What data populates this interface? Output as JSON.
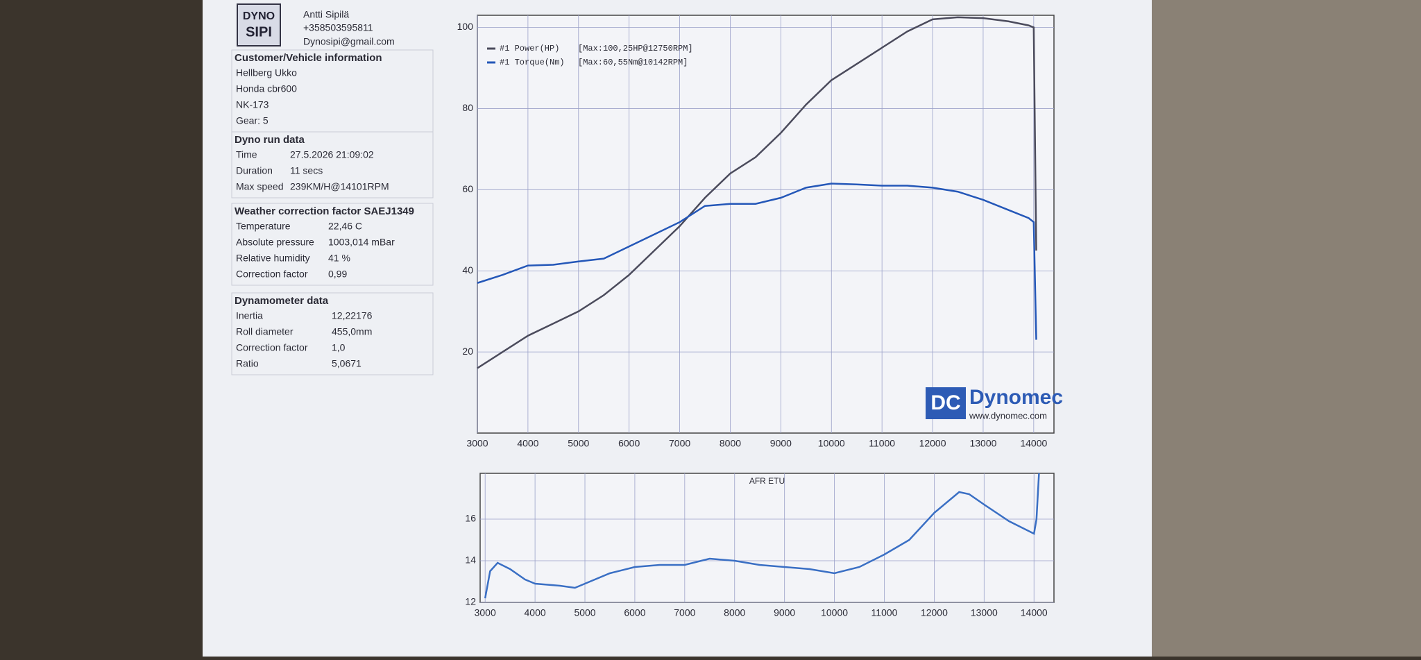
{
  "header": {
    "logo": [
      "DYNO",
      "SIPI"
    ],
    "name": "Antti Sipilä",
    "phone": "+358503595811",
    "email": "Dynosipi@gmail.com"
  },
  "sections": [
    {
      "title": "Customer/Vehicle information",
      "rows": [
        [
          "Hellberg Ukko"
        ],
        [
          "Honda cbr600"
        ],
        [
          "NK-173"
        ],
        [
          "Gear: 5"
        ]
      ]
    },
    {
      "title": "Dyno run data",
      "rows": [
        [
          "Time",
          "27.5.2026 21:09:02"
        ],
        [
          "Duration",
          "11 secs"
        ],
        [
          "Max speed",
          "239KM/H@14101RPM"
        ]
      ]
    },
    {
      "title": "Weather correction factor SAEJ1349",
      "rows": [
        [
          "Temperature",
          "22,46 C"
        ],
        [
          "Absolute pressure",
          "1003,014 mBar"
        ],
        [
          "Relative humidity",
          "41 %"
        ],
        [
          "Correction factor",
          "0,99"
        ]
      ]
    },
    {
      "title": "Dynamometer data",
      "rows": [
        [
          "Inertia",
          "12,22176"
        ],
        [
          "Roll diameter",
          "455,0mm"
        ],
        [
          "Correction factor",
          "1,0"
        ],
        [
          "Ratio",
          "5,0671"
        ]
      ]
    }
  ],
  "chart_data": [
    {
      "type": "line",
      "logo_mark": "DC",
      "logo_text": "Dynomec",
      "logo_url": "www.dynomec.com",
      "x": [
        3000,
        3500,
        4000,
        4500,
        5000,
        5500,
        6000,
        6500,
        7000,
        7500,
        8000,
        8500,
        9000,
        9500,
        10000,
        10500,
        11000,
        11500,
        12000,
        12500,
        13000,
        13500,
        13900,
        14000,
        14050
      ],
      "series": [
        {
          "name": "#1 Power(HP)",
          "note": "[Max:100,25HP@12750RPM]",
          "color": "#4b4b5c",
          "values": [
            16,
            20,
            24,
            27,
            30,
            34,
            39,
            45,
            51,
            58,
            64,
            68,
            74,
            81,
            87,
            91,
            95,
            99,
            102,
            102.5,
            102.3,
            101.5,
            100.5,
            100,
            45
          ]
        },
        {
          "name": "#1 Torque(Nm)",
          "note": "[Max:60,55Nm@10142RPM]",
          "color": "#2457b8",
          "values": [
            37,
            39,
            41.3,
            41.5,
            42.3,
            43,
            46,
            49,
            52,
            56,
            56.5,
            56.5,
            58,
            60.5,
            61.5,
            61.3,
            61,
            61,
            60.5,
            59.5,
            57.5,
            55,
            53,
            52,
            23
          ]
        }
      ],
      "xlim": [
        3000,
        14400
      ],
      "xticks": [
        3000,
        4000,
        5000,
        6000,
        7000,
        8000,
        9000,
        10000,
        11000,
        12000,
        13000,
        14000
      ],
      "ylim": [
        0,
        103
      ],
      "yticks": [
        20,
        40,
        60,
        80,
        100
      ],
      "grid": true
    },
    {
      "type": "line",
      "title": "AFR ETU",
      "x": [
        3000,
        3100,
        3250,
        3500,
        3800,
        4000,
        4500,
        4800,
        5000,
        5500,
        6000,
        6500,
        7000,
        7500,
        8000,
        8500,
        9000,
        9500,
        10000,
        10500,
        11000,
        11500,
        12000,
        12500,
        12700,
        13000,
        13500,
        14000,
        14050,
        14100
      ],
      "series": [
        {
          "name": "AFR",
          "color": "#3a6fc4",
          "values": [
            12.2,
            13.5,
            13.9,
            13.6,
            13.1,
            12.9,
            12.8,
            12.7,
            12.9,
            13.4,
            13.7,
            13.8,
            13.8,
            14.1,
            14.0,
            13.8,
            13.7,
            13.6,
            13.4,
            13.7,
            14.3,
            15.0,
            16.3,
            17.3,
            17.2,
            16.7,
            15.9,
            15.3,
            16,
            18.2
          ]
        }
      ],
      "xlim": [
        2900,
        14400
      ],
      "xticks": [
        3000,
        4000,
        5000,
        6000,
        7000,
        8000,
        9000,
        10000,
        11000,
        12000,
        13000,
        14000
      ],
      "ylim": [
        12,
        18.2
      ],
      "yticks": [
        12,
        14,
        16
      ],
      "grid": true
    }
  ]
}
